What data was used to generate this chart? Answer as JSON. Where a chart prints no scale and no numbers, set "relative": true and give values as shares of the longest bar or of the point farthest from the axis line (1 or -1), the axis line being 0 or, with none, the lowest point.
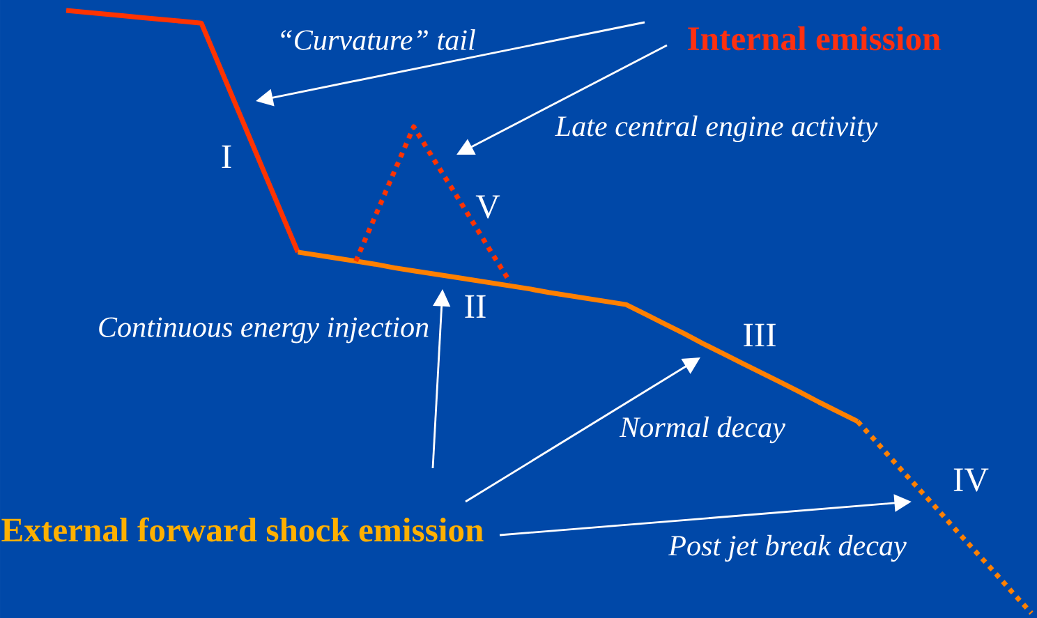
{
  "chart_data": {
    "type": "line",
    "relative": true,
    "categories": [
      null,
      null,
      null,
      null,
      null,
      null,
      null,
      null,
      null,
      null,
      null,
      null,
      null,
      null,
      null,
      null,
      null,
      null,
      null,
      null,
      null,
      null,
      null,
      null,
      null,
      null,
      null,
      null,
      null,
      null,
      null,
      null,
      null,
      null,
      null,
      null,
      null,
      null,
      null,
      null,
      null,
      null,
      null,
      null,
      null,
      null,
      null,
      null,
      null,
      null,
      null
    ],
    "series": [
      {
        "color": "#ff3300",
        "line_style": "solid",
        "values": [
          1.0,
          0.997,
          0.994,
          0.991,
          0.988,
          0.985,
          0.982,
          0.979,
          0.903,
          0.827,
          0.751,
          0.675,
          0.599,
          null,
          null,
          null,
          null,
          null,
          null,
          null,
          null,
          null,
          null,
          null,
          null,
          null,
          null,
          null,
          null,
          null,
          null,
          null,
          null,
          null,
          null,
          null,
          null,
          null,
          null,
          null,
          null,
          null,
          null,
          null,
          null,
          null,
          null,
          null,
          null,
          null,
          null
        ]
      },
      {
        "color": "#ff8000",
        "line_style": "solid",
        "values": [
          null,
          null,
          null,
          null,
          null,
          null,
          null,
          null,
          null,
          null,
          null,
          null,
          0.599,
          0.594,
          0.589,
          0.584,
          0.579,
          0.573,
          0.568,
          0.563,
          0.558,
          0.553,
          0.548,
          0.543,
          0.538,
          0.532,
          0.527,
          0.522,
          0.517,
          0.512,
          0.496,
          0.48,
          0.464,
          0.447,
          0.431,
          0.415,
          0.399,
          0.383,
          0.367,
          0.35,
          0.334,
          0.318,
          null,
          null,
          null,
          null,
          null,
          null,
          null,
          null,
          null
        ]
      },
      {
        "color": "#ff8000",
        "line_style": "dotted",
        "values": [
          null,
          null,
          null,
          null,
          null,
          null,
          null,
          null,
          null,
          null,
          null,
          null,
          null,
          null,
          null,
          null,
          null,
          null,
          null,
          null,
          null,
          null,
          null,
          null,
          null,
          null,
          null,
          null,
          null,
          null,
          null,
          null,
          null,
          null,
          null,
          null,
          null,
          null,
          null,
          null,
          null,
          0.318,
          0.283,
          0.247,
          0.212,
          0.177,
          0.141,
          0.106,
          0.071,
          0.035,
          0.0
        ]
      },
      {
        "color": "#ff3300",
        "line_style": "dotted",
        "values": [
          null,
          null,
          null,
          null,
          null,
          null,
          null,
          null,
          null,
          null,
          null,
          null,
          null,
          null,
          null,
          0.584,
          0.658,
          0.733,
          0.807,
          0.755,
          0.704,
          0.652,
          0.6,
          0.549,
          null,
          null,
          null,
          null,
          null,
          null,
          null,
          null,
          null,
          null,
          null,
          null,
          null,
          null,
          null,
          null,
          null,
          null,
          null,
          null,
          null,
          null,
          null,
          null,
          null,
          null,
          null
        ]
      }
    ],
    "annotations": [
      "“Curvature” tail",
      "Internal emission",
      "Late central engine activity",
      "Continuous energy injection",
      "External forward shock emission",
      "Normal decay",
      "Post jet break decay",
      "I",
      "V",
      "II",
      "III",
      "IV"
    ]
  }
}
